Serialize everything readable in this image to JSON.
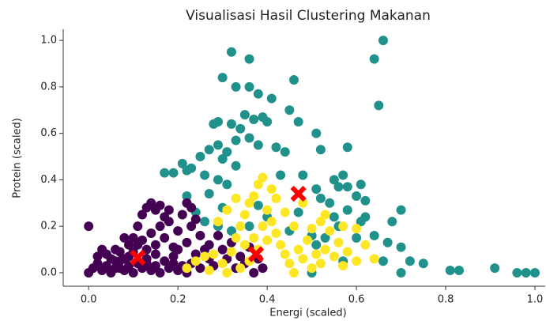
{
  "chart_data": {
    "type": "scatter",
    "title": "Visualisasi Hasil Clustering Makanan",
    "x_label": "Energi (scaled)",
    "y_label": "Protein (scaled)",
    "xlim": [
      -0.057,
      1.023
    ],
    "ylim": [
      -0.058,
      1.048
    ],
    "xticks": [
      {
        "value": 0,
        "label": "0.0"
      },
      0.2,
      0.4,
      0.6,
      0.8,
      {
        "value": 1,
        "label": "1.0"
      }
    ],
    "yticks": [
      {
        "value": 0,
        "label": "0.0"
      },
      0.2,
      0.4,
      0.6,
      0.8,
      {
        "value": 1,
        "label": "1.0"
      }
    ],
    "series": [
      {
        "color": "#21918c",
        "marker": "o",
        "x": [
          0.66,
          0.64,
          0.32,
          0.36,
          0.65,
          0.3,
          0.46,
          0.33,
          0.36,
          0.38,
          0.41,
          0.35,
          0.45,
          0.29,
          0.32,
          0.37,
          0.39,
          0.4,
          0.47,
          0.51,
          0.28,
          0.34,
          0.36,
          0.33,
          0.38,
          0.42,
          0.44,
          0.52,
          0.58,
          0.29,
          0.31,
          0.27,
          0.25,
          0.3,
          0.33,
          0.21,
          0.22,
          0.23,
          0.19,
          0.17,
          0.26,
          0.29,
          0.31,
          0.43,
          0.48,
          0.55,
          0.57,
          0.61,
          0.51,
          0.56,
          0.58,
          0.52,
          0.6,
          0.62,
          0.54,
          0.47,
          0.55,
          0.58,
          0.62,
          0.56,
          0.61,
          0.68,
          0.7,
          0.27,
          0.22,
          0.3,
          0.24,
          0.26,
          0.29,
          0.32,
          0.36,
          0.4,
          0.38,
          0.45,
          0.5,
          0.51,
          0.53,
          0.6,
          0.64,
          0.67,
          0.7,
          0.66,
          0.72,
          0.75,
          0.81,
          0.83,
          0.91,
          0.96,
          0.98,
          1.0,
          0.7,
          0.5,
          0.57
        ],
        "values": [
          1.0,
          0.92,
          0.95,
          0.92,
          0.72,
          0.84,
          0.83,
          0.8,
          0.8,
          0.77,
          0.75,
          0.68,
          0.7,
          0.65,
          0.64,
          0.66,
          0.67,
          0.65,
          0.65,
          0.6,
          0.64,
          0.62,
          0.58,
          0.57,
          0.55,
          0.54,
          0.52,
          0.53,
          0.54,
          0.55,
          0.52,
          0.53,
          0.5,
          0.49,
          0.46,
          0.47,
          0.44,
          0.45,
          0.43,
          0.43,
          0.42,
          0.4,
          0.38,
          0.42,
          0.42,
          0.4,
          0.42,
          0.38,
          0.36,
          0.37,
          0.37,
          0.32,
          0.33,
          0.31,
          0.3,
          0.26,
          0.24,
          0.27,
          0.24,
          0.2,
          0.22,
          0.22,
          0.27,
          0.34,
          0.33,
          0.28,
          0.26,
          0.22,
          0.2,
          0.18,
          0.2,
          0.24,
          0.29,
          0.18,
          0.16,
          0.12,
          0.15,
          0.15,
          0.16,
          0.13,
          0.11,
          0.05,
          0.05,
          0.04,
          0.01,
          0.01,
          0.02,
          0.0,
          0.0,
          0.0,
          0.0,
          0.0,
          0.05
        ]
      },
      {
        "color": "#440154",
        "marker": "o",
        "x": [
          0.0,
          0.01,
          0.02,
          0.03,
          0.04,
          0.05,
          0.06,
          0.07,
          0.08,
          0.09,
          0.1,
          0.11,
          0.12,
          0.13,
          0.14,
          0.15,
          0.16,
          0.17,
          0.18,
          0.19,
          0.2,
          0.21,
          0.22,
          0.02,
          0.04,
          0.06,
          0.08,
          0.09,
          0.1,
          0.12,
          0.13,
          0.14,
          0.15,
          0.16,
          0.17,
          0.18,
          0.19,
          0.2,
          0.21,
          0.22,
          0.23,
          0.24,
          0.25,
          0.26,
          0.27,
          0.11,
          0.12,
          0.13,
          0.14,
          0.15,
          0.16,
          0.17,
          0.18,
          0.1,
          0.11,
          0.07,
          0.05,
          0.0,
          0.03,
          0.19,
          0.23,
          0.25,
          0.28,
          0.3,
          0.31,
          0.32,
          0.33,
          0.29,
          0.34,
          0.35,
          0.36,
          0.37,
          0.38,
          0.39,
          0.27,
          0.24,
          0.2,
          0.15,
          0.13,
          0.09,
          0.08,
          0.07,
          0.06,
          0.23,
          0.22
        ],
        "values": [
          0.0,
          0.02,
          0.04,
          0.01,
          0.03,
          0.0,
          0.02,
          0.05,
          0.01,
          0.03,
          0.0,
          0.04,
          0.02,
          0.06,
          0.01,
          0.03,
          0.0,
          0.05,
          0.02,
          0.04,
          0.01,
          0.03,
          0.0,
          0.07,
          0.08,
          0.1,
          0.06,
          0.12,
          0.09,
          0.14,
          0.1,
          0.17,
          0.12,
          0.2,
          0.15,
          0.22,
          0.11,
          0.18,
          0.25,
          0.13,
          0.2,
          0.08,
          0.16,
          0.1,
          0.06,
          0.2,
          0.25,
          0.28,
          0.3,
          0.27,
          0.29,
          0.24,
          0.27,
          0.15,
          0.12,
          0.09,
          0.06,
          0.2,
          0.1,
          0.07,
          0.04,
          0.02,
          0.03,
          0.1,
          0.06,
          0.13,
          0.02,
          0.16,
          0.07,
          0.04,
          0.11,
          0.0,
          0.06,
          0.02,
          0.12,
          0.23,
          0.1,
          0.08,
          0.04,
          0.07,
          0.15,
          0.02,
          0.05,
          0.28,
          0.3
        ]
      },
      {
        "color": "#fde725",
        "marker": "o",
        "x": [
          0.22,
          0.24,
          0.26,
          0.27,
          0.28,
          0.3,
          0.31,
          0.32,
          0.33,
          0.34,
          0.35,
          0.36,
          0.37,
          0.38,
          0.39,
          0.4,
          0.41,
          0.42,
          0.43,
          0.44,
          0.45,
          0.46,
          0.47,
          0.48,
          0.49,
          0.5,
          0.51,
          0.52,
          0.53,
          0.54,
          0.55,
          0.56,
          0.57,
          0.58,
          0.6,
          0.62,
          0.64,
          0.52,
          0.46,
          0.44,
          0.42,
          0.33,
          0.31,
          0.29,
          0.4,
          0.38,
          0.36,
          0.34,
          0.53,
          0.5,
          0.48,
          0.41,
          0.39,
          0.37,
          0.35,
          0.6,
          0.57
        ],
        "values": [
          0.02,
          0.05,
          0.07,
          0.01,
          0.08,
          0.04,
          0.0,
          0.09,
          0.15,
          0.2,
          0.25,
          0.3,
          0.33,
          0.38,
          0.41,
          0.27,
          0.22,
          0.17,
          0.12,
          0.08,
          0.04,
          0.0,
          0.1,
          0.06,
          0.14,
          0.02,
          0.08,
          0.04,
          0.1,
          0.18,
          0.07,
          0.13,
          0.03,
          0.09,
          0.05,
          0.12,
          0.06,
          0.22,
          0.2,
          0.26,
          0.32,
          0.32,
          0.27,
          0.22,
          0.14,
          0.1,
          0.05,
          0.02,
          0.25,
          0.19,
          0.3,
          0.36,
          0.2,
          0.15,
          0.12,
          0.19,
          0.2
        ]
      },
      {
        "color": "#ff0000",
        "marker": "x",
        "x": [
          0.11,
          0.375,
          0.47
        ],
        "values": [
          0.065,
          0.08,
          0.34
        ]
      }
    ]
  }
}
